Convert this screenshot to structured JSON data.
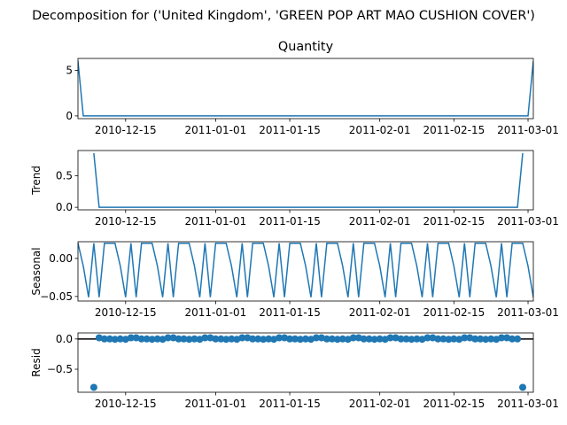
{
  "figure": {
    "suptitle": "Decomposition for ('United Kingdom', 'GREEN POP ART MAO CUSHION COVER')"
  },
  "colors": {
    "line": "#1f77b4",
    "axis": "#000000",
    "background": "#ffffff"
  },
  "chart_data": [
    {
      "type": "line",
      "title": "Quantity",
      "ylabel": "",
      "x_ticks": [
        "2010-12-15",
        "2011-01-01",
        "2011-01-15",
        "2011-02-01",
        "2011-02-15",
        "2011-03-01"
      ],
      "y_ticks": [
        "0",
        "5"
      ],
      "ylim": [
        -0.3,
        6.3
      ],
      "series": [
        {
          "points": [
            [
              "2010-12-06",
              6
            ],
            [
              "2010-12-07",
              0
            ],
            [
              "2011-03-01",
              0
            ],
            [
              "2011-03-02",
              6
            ]
          ]
        }
      ]
    },
    {
      "type": "line",
      "title": "",
      "ylabel": "Trend",
      "x_ticks": [
        "2010-12-15",
        "2011-01-01",
        "2011-01-15",
        "2011-02-01",
        "2011-02-15",
        "2011-03-01"
      ],
      "y_ticks": [
        "0.0",
        "0.5"
      ],
      "ylim": [
        -0.04,
        0.9
      ],
      "series": [
        {
          "points": [
            [
              "2010-12-09",
              0.86
            ],
            [
              "2010-12-10",
              0
            ],
            [
              "2011-02-27",
              0
            ],
            [
              "2011-02-28",
              0.86
            ]
          ]
        }
      ]
    },
    {
      "type": "line",
      "title": "",
      "ylabel": "Seasonal",
      "x_ticks": [
        "2010-12-15",
        "2011-01-01",
        "2011-01-15",
        "2011-02-01",
        "2011-02-15",
        "2011-03-01"
      ],
      "y_ticks": [
        "0.00",
        "−0.05"
      ],
      "ylim": [
        -0.056,
        0.022
      ],
      "pattern": {
        "start": "2010-12-06",
        "period_days": 7,
        "values": [
          0.02,
          -0.01,
          -0.051,
          0.02,
          -0.051,
          0.02,
          0.02
        ]
      },
      "x_range": [
        "2010-12-06",
        "2011-03-02"
      ]
    },
    {
      "type": "scatter",
      "title": "",
      "ylabel": "Resid",
      "x_ticks": [
        "2010-12-15",
        "2011-01-01",
        "2011-01-15",
        "2011-02-01",
        "2011-02-15",
        "2011-03-01"
      ],
      "y_ticks": [
        "0.0",
        "−0.5"
      ],
      "ylim": [
        -0.88,
        0.1
      ],
      "baseline": 0,
      "points_range": [
        "2010-12-09",
        "2011-02-28"
      ],
      "outliers": [
        [
          "2010-12-09",
          -0.8
        ],
        [
          "2011-02-28",
          -0.8
        ]
      ],
      "dips": [
        0.02,
        0.0,
        0.0,
        -0.005,
        0.0,
        -0.005,
        0.02
      ],
      "dips_start": "2010-12-10"
    }
  ]
}
